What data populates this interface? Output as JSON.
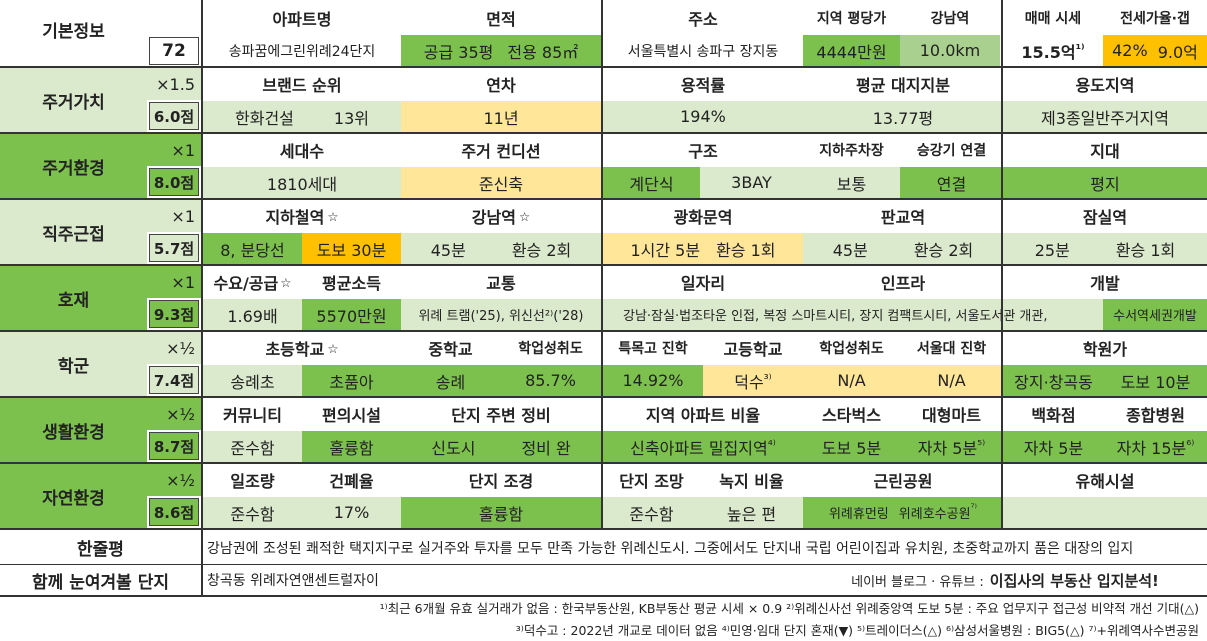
{
  "basic": {
    "label": "기본정보",
    "id": "72",
    "headers": {
      "name": "아파트명",
      "area": "면적",
      "address": "주소",
      "price_per_pyeong": "지역 평당가",
      "gangnam": "강남역",
      "sale": "매매 시세",
      "jeonse": "전세가율·갭"
    },
    "name": "송파꿈에그린위례24단지",
    "area_supply": "공급 35평",
    "area_exclusive": "전용 85㎡",
    "address": "서울특별시 송파구 장지동",
    "price_per_pyeong": "4444만원",
    "gangnam_distance": "10.0km",
    "sale_price": "15.5억",
    "sale_note": "¹⁾",
    "jeonse_rate": "42%",
    "jeonse_gap": "9.0억"
  },
  "sections": [
    {
      "label": "주거가치",
      "weight": "×1.5",
      "score": "6.0점"
    },
    {
      "label": "주거환경",
      "weight": "×1",
      "score": "8.0점"
    },
    {
      "label": "직주근접",
      "weight": "×1",
      "score": "5.7점"
    },
    {
      "label": "호재",
      "weight": "×1",
      "score": "9.3점"
    },
    {
      "label": "학군",
      "weight": "×½",
      "score": "7.4점"
    },
    {
      "label": "생활환경",
      "weight": "×½",
      "score": "8.7점"
    },
    {
      "label": "자연환경",
      "weight": "×½",
      "score": "8.6점"
    }
  ],
  "housing_value": {
    "headers": [
      "브랜드 순위",
      "연차",
      "용적률",
      "평균 대지지분",
      "용도지역"
    ],
    "brand": "한화건설",
    "brand_rank": "13위",
    "age": "11년",
    "far": "194%",
    "land_share": "13.77평",
    "zoning": "제3종일반주거지역"
  },
  "housing_env": {
    "headers": [
      "세대수",
      "주거 컨디션",
      "구조",
      "지하주차장",
      "승강기 연결",
      "지대"
    ],
    "households": "1810세대",
    "condition": "준신축",
    "structure_type": "계단식",
    "bay": "3BAY",
    "parking": "보통",
    "elevator": "연결",
    "terrain": "평지"
  },
  "commute": {
    "headers": [
      "지하철역",
      "강남역",
      "광화문역",
      "판교역",
      "잠실역"
    ],
    "star": "☆",
    "subway_line": "8, 분당선",
    "subway_walk": "도보 30분",
    "gangnam_time": "45분",
    "gangnam_transfer": "환승 2회",
    "gwanghwamun_time": "1시간 5분",
    "gwanghwamun_transfer": "환승 1회",
    "pangyo_time": "45분",
    "pangyo_transfer": "환승 2회",
    "jamsil_time": "25분",
    "jamsil_transfer": "환승 1회"
  },
  "development": {
    "headers": [
      "수요/공급",
      "평균소득",
      "교통",
      "일자리",
      "인프라",
      "개발"
    ],
    "star": "☆",
    "supply_ratio": "1.69배",
    "income": "5570만원",
    "transport": "위례 트램('25), 위신선²⁾('28)",
    "jobs": "강남·잠실·법조타운 인접, 복정 스마트시티, 장지 컴팩트시티, 서울도서관 개관,",
    "infra": "",
    "redevelopment": "수서역세권개발"
  },
  "school": {
    "headers": [
      "초등학교",
      "중학교",
      "학업성취도",
      "특목고 진학",
      "고등학교",
      "학업성취도",
      "서울대 진학",
      "학원가"
    ],
    "star": "☆",
    "elem1": "송례초",
    "elem2": "초품아",
    "middle": "송례",
    "middle_score": "85.7%",
    "special_rate": "14.92%",
    "high": "덕수",
    "high_note": "³⁾",
    "high_score": "N/A",
    "snu": "N/A",
    "academy_area": "장지·창곡동",
    "academy_walk": "도보 10분"
  },
  "living": {
    "headers": [
      "커뮤니티",
      "편의시설",
      "단지 주변 정비",
      "지역 아파트 비율",
      "스타벅스",
      "대형마트",
      "백화점",
      "종합병원"
    ],
    "community": "준수함",
    "convenience": "훌륭함",
    "surround_type": "신도시",
    "surround_status": "정비 완",
    "apt_ratio": "신축아파트 밀집지역",
    "apt_ratio_note": "⁴⁾",
    "starbucks": "도보 5분",
    "mart": "자차 5분",
    "mart_note": "⁵⁾",
    "dept": "자차 5분",
    "hospital": "자차 15분",
    "hospital_note": "⁶⁾"
  },
  "nature": {
    "headers": [
      "일조량",
      "건폐율",
      "단지 조경",
      "단지 조망",
      "녹지 비율",
      "근린공원",
      "유해시설"
    ],
    "sunlight": "준수함",
    "coverage": "17%",
    "landscape": "훌륭함",
    "view": "준수함",
    "green_ratio": "높은 편",
    "park1": "위례휴먼링",
    "park2": "위례호수공원",
    "park2_note": "⁷⁾",
    "hazard": ""
  },
  "oneline": {
    "label": "한줄평",
    "text": "강남권에 조성된 쾌적한 택지지구로 실거주와 투자를 모두 만족 가능한 위례신도시. 그중에서도 단지내 국립 어린이집과 유치원, 초중학교까지 품은 대장의 입지"
  },
  "compare": {
    "label": "함께 눈여겨볼 단지",
    "complex": "창곡동 위례자연앤센트럴자이",
    "source_prefix": "네이버 블로그 · 유튜브 :",
    "source_name": "이집사의 부동산 입지분석!"
  },
  "footnotes": [
    "¹⁾최근 6개월 유효 실거래가 없음 : 한국부동산원, KB부동산 평균 시세 × 0.9 ²⁾위례신사선 위례중앙역 도보 5분 : 주요 업무지구 접근성 비약적 개선 기대(△)",
    "³⁾덕수고 : 2022년 개교로 데이터 없음 ⁴⁾민영·임대 단지 혼재(▼) ⁵⁾트레이더스(△) ⁶⁾삼성서울병원 : BIG5(△) ⁷⁾+위례역사수변공원"
  ],
  "colors": {
    "light_green": "#dbe9cc",
    "mid_green": "#a9d08e",
    "dark_green": "#7cc14d",
    "yellow": "#ffe699",
    "orange": "#ffc000"
  }
}
